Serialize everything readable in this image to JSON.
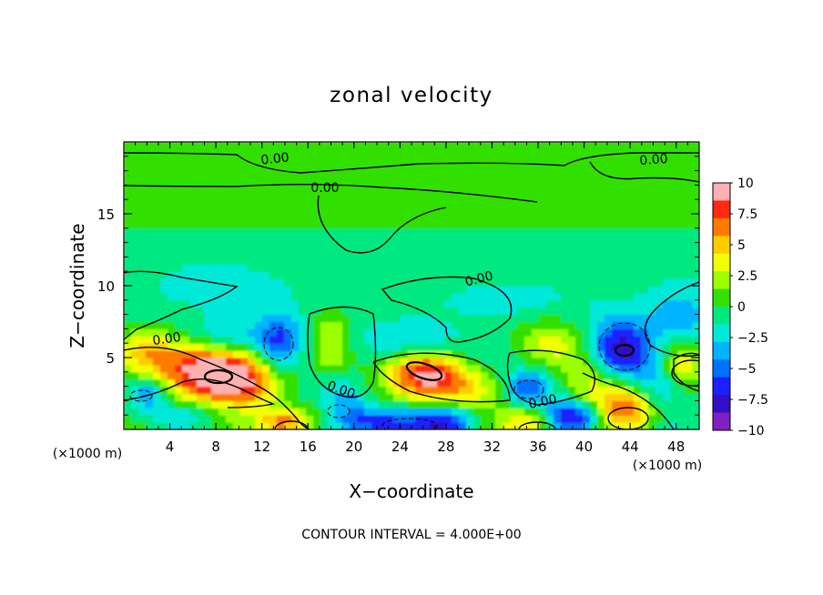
{
  "chart_data": {
    "type": "heatmap",
    "title": "zonal velocity",
    "xlabel": "X−coordinate",
    "ylabel": "Z−coordinate",
    "x_unit_left": "(×1000 m)",
    "x_unit_right": "(×1000 m)",
    "xlim": [
      0,
      50
    ],
    "ylim": [
      0,
      20
    ],
    "x_ticks": [
      4,
      8,
      12,
      16,
      20,
      24,
      28,
      32,
      36,
      40,
      44,
      48
    ],
    "x_tick_labels": [
      "4",
      "8",
      "12",
      "16",
      "20",
      "24",
      "28",
      "32",
      "36",
      "40",
      "44",
      "48"
    ],
    "y_ticks": [
      5,
      10,
      15
    ],
    "y_tick_labels": [
      "5",
      "10",
      "15"
    ],
    "colorbar": {
      "range": [
        -10,
        10
      ],
      "tick_labels": [
        "10",
        "7.5",
        "5",
        "2.5",
        "0",
        "−2.5",
        "−5",
        "−7.5",
        "−10"
      ],
      "colors": [
        "#ffb0b0",
        "#ff2a10",
        "#ff7a00",
        "#ffcc00",
        "#f2ff00",
        "#9cff00",
        "#33e000",
        "#00e880",
        "#00e8d8",
        "#00b4ff",
        "#0070ff",
        "#1a20ff",
        "#3010c0",
        "#8020c0"
      ]
    },
    "contour_labels": [
      "0.00",
      "0.00",
      "0.00",
      "0.00",
      "0.00",
      "0.00",
      "0.00"
    ],
    "footer": "CONTOUR INTERVAL = 4.000E+00",
    "features": [
      {
        "x": 25,
        "y": 17.5,
        "value": 0.2,
        "sx": 12,
        "sy": 2.5
      },
      {
        "x": 8.5,
        "y": 3.7,
        "value": 9.5,
        "sx": 2.5,
        "sy": 1.2
      },
      {
        "x": 5,
        "y": 4.5,
        "value": 5,
        "sx": 3,
        "sy": 1.5
      },
      {
        "x": 12,
        "y": 3,
        "value": 3.5,
        "sx": 2.5,
        "sy": 1.5
      },
      {
        "x": 2,
        "y": 2.5,
        "value": -5,
        "sx": 1.2,
        "sy": 0.8
      },
      {
        "x": 1.5,
        "y": 5.5,
        "value": 3.5,
        "sx": 2,
        "sy": 1
      },
      {
        "x": 14,
        "y": 0.5,
        "value": 7,
        "sx": 1.5,
        "sy": 0.6
      },
      {
        "x": 17,
        "y": 0.8,
        "value": 3,
        "sx": 1.5,
        "sy": 0.8
      },
      {
        "x": 13.5,
        "y": 6,
        "value": -5,
        "sx": 1.3,
        "sy": 1.5
      },
      {
        "x": 9,
        "y": 6.5,
        "value": -3,
        "sx": 3,
        "sy": 1
      },
      {
        "x": 18,
        "y": 6,
        "value": 4,
        "sx": 1.3,
        "sy": 1.5
      },
      {
        "x": 19,
        "y": 2,
        "value": -3,
        "sx": 1.5,
        "sy": 1
      },
      {
        "x": 22,
        "y": 0.5,
        "value": -6,
        "sx": 2.5,
        "sy": 0.7
      },
      {
        "x": 26,
        "y": 4,
        "value": 8,
        "sx": 2.5,
        "sy": 1.2
      },
      {
        "x": 28.5,
        "y": 3,
        "value": 4,
        "sx": 3,
        "sy": 1.3
      },
      {
        "x": 25,
        "y": 6,
        "value": -3,
        "sx": 3,
        "sy": 1
      },
      {
        "x": 28,
        "y": 0.5,
        "value": -7,
        "sx": 2,
        "sy": 0.8
      },
      {
        "x": 35,
        "y": 3,
        "value": -5,
        "sx": 1.5,
        "sy": 0.9
      },
      {
        "x": 35.5,
        "y": 0.5,
        "value": 6,
        "sx": 1.8,
        "sy": 0.7
      },
      {
        "x": 37,
        "y": 6,
        "value": 4,
        "sx": 2,
        "sy": 1.2
      },
      {
        "x": 38.5,
        "y": 0.8,
        "value": -6,
        "sx": 1.8,
        "sy": 0.8
      },
      {
        "x": 40.5,
        "y": 4,
        "value": 4,
        "sx": 1.8,
        "sy": 1.5
      },
      {
        "x": 43,
        "y": 5.5,
        "value": -8,
        "sx": 2,
        "sy": 1.5
      },
      {
        "x": 43.5,
        "y": 1.5,
        "value": 8,
        "sx": 2.2,
        "sy": 1.3
      },
      {
        "x": 40,
        "y": 1,
        "value": -3,
        "sx": 1.5,
        "sy": 0.8
      },
      {
        "x": 48.5,
        "y": 4.5,
        "value": 5,
        "sx": 1.5,
        "sy": 1.2
      },
      {
        "x": 46.5,
        "y": 3,
        "value": -3,
        "sx": 1.5,
        "sy": 1.2
      },
      {
        "x": 48.5,
        "y": 8,
        "value": -3,
        "sx": 2,
        "sy": 1.5
      },
      {
        "x": 8,
        "y": 10,
        "value": -2,
        "sx": 4,
        "sy": 1.2
      },
      {
        "x": 33,
        "y": 9,
        "value": -1.5,
        "sx": 5,
        "sy": 1.2
      },
      {
        "x": 5,
        "y": 1,
        "value": -2,
        "sx": 2,
        "sy": 0.6
      },
      {
        "x": 31,
        "y": 5,
        "value": -2,
        "sx": 2,
        "sy": 1
      }
    ]
  }
}
